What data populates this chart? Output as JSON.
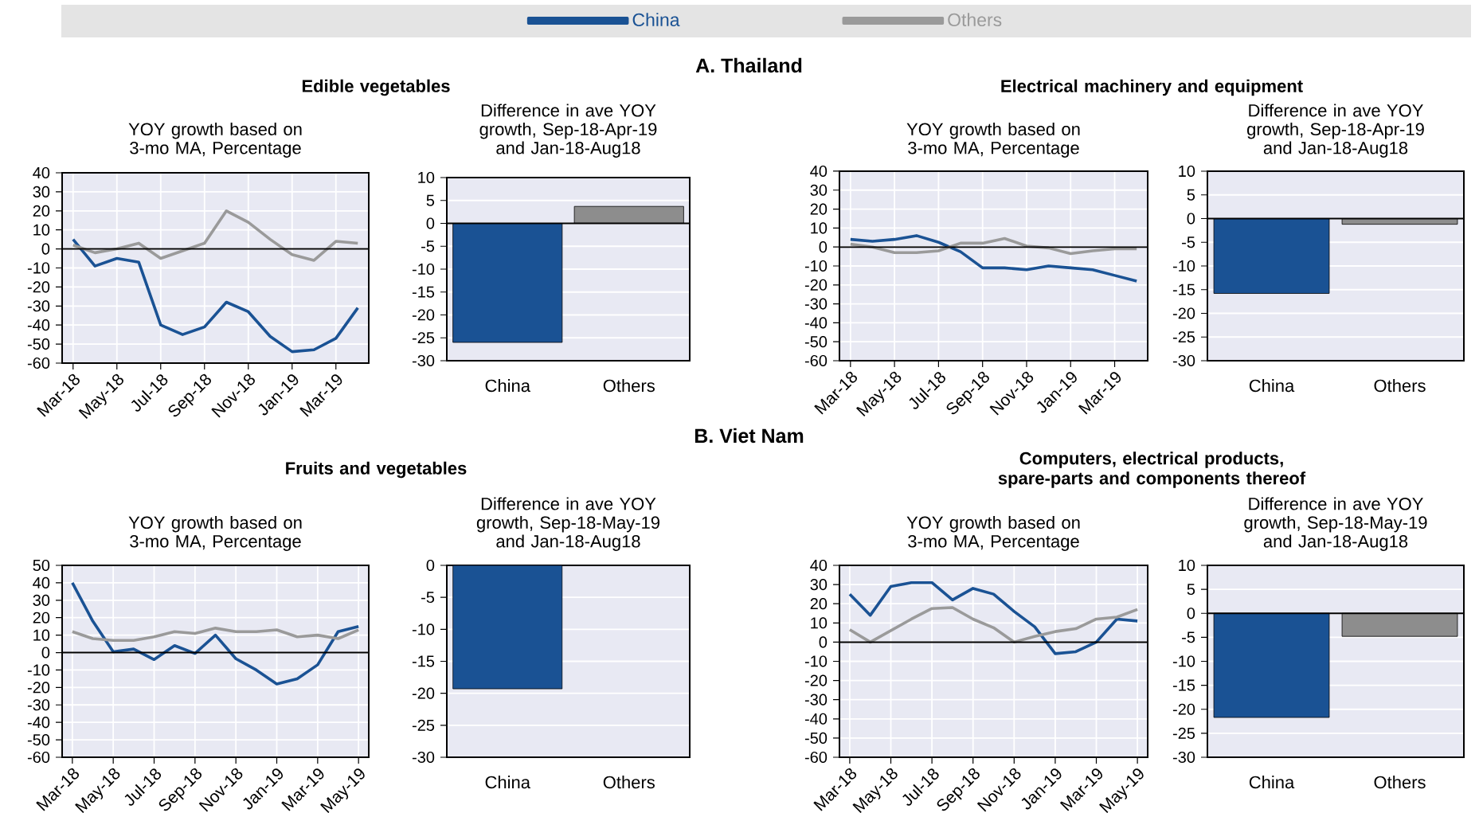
{
  "chart_data": [
    {
      "type": "line",
      "title": "Edible vegetables",
      "subtitle": "YOY growth based on 3-mo MA, Percentage",
      "annotations": [
        "A. Thailand"
      ],
      "legend": "top",
      "grid": true,
      "categories": [
        "Mar-18",
        null,
        "May-18",
        null,
        "Jul-18",
        null,
        "Sep-18",
        null,
        "Nov-18",
        null,
        "Jan-19",
        null,
        "Mar-19",
        null
      ],
      "ylim": [
        -60,
        40
      ],
      "yticks": [
        -60,
        -50,
        -40,
        -30,
        -20,
        -10,
        0,
        10,
        20,
        30,
        40
      ],
      "ref_lines": [
        {
          "axis": "y",
          "value": 0,
          "color": "#000000"
        }
      ],
      "series": [
        {
          "name": "China",
          "color": "#1a5294",
          "values": [
            5,
            -9,
            -5,
            -7,
            -40,
            -45,
            -41,
            -28,
            -33,
            -46,
            -54,
            -53,
            -47,
            -31
          ]
        },
        {
          "name": "Others",
          "color": "#9a9a9a",
          "values": [
            2,
            -2,
            0,
            3,
            -5,
            -1,
            3,
            20,
            14,
            5,
            -3,
            -6,
            4,
            3
          ]
        }
      ]
    },
    {
      "type": "bar",
      "title": "Difference in ave YOY growth, Sep-18-Apr-19 and Jan-18-Aug18",
      "grid": "y",
      "categories": [
        "China",
        "Others"
      ],
      "values": [
        -26,
        3.7
      ],
      "colors": [
        "#1a5294",
        "#8d8d8d"
      ],
      "ylim": [
        -30,
        10
      ],
      "yticks": [
        -30,
        -25,
        -20,
        -15,
        -10,
        -5,
        0,
        5,
        10
      ],
      "ref_lines": [
        {
          "axis": "y",
          "value": 0,
          "color": "#000000"
        }
      ]
    },
    {
      "type": "line",
      "title": "Electrical machinery and equipment",
      "subtitle": "YOY growth based on 3-mo MA, Percentage",
      "grid": true,
      "categories": [
        "Mar-18",
        null,
        "May-18",
        null,
        "Jul-18",
        null,
        "Sep-18",
        null,
        "Nov-18",
        null,
        "Jan-19",
        null,
        "Mar-19",
        null
      ],
      "ylim": [
        -60,
        40
      ],
      "yticks": [
        -60,
        -50,
        -40,
        -30,
        -20,
        -10,
        0,
        10,
        20,
        30,
        40
      ],
      "ref_lines": [
        {
          "axis": "y",
          "value": 0,
          "color": "#000000"
        }
      ],
      "series": [
        {
          "color": "#1a5294",
          "values": [
            4,
            3,
            4,
            6,
            2.5,
            -2.5,
            -11,
            -11,
            -12,
            -10,
            -11,
            -12,
            -15,
            -18
          ]
        },
        {
          "color": "#9a9a9a",
          "values": [
            1.5,
            0,
            -3,
            -3,
            -2,
            2,
            2,
            4.5,
            0.5,
            -0.5,
            -3.5,
            -2,
            -1,
            -1
          ]
        }
      ]
    },
    {
      "type": "bar",
      "title": "Difference in ave YOY growth, Sep-18-Apr-19 and Jan-18-Aug18",
      "grid": "y",
      "categories": [
        "China",
        "Others"
      ],
      "values": [
        -15.8,
        -1.2
      ],
      "colors": [
        "#1a5294",
        "#8d8d8d"
      ],
      "ylim": [
        -30,
        10
      ],
      "yticks": [
        -30,
        -25,
        -20,
        -15,
        -10,
        -5,
        0,
        5,
        10
      ],
      "ref_lines": [
        {
          "axis": "y",
          "value": 0,
          "color": "#000000"
        }
      ]
    },
    {
      "type": "line",
      "title": "Fruits and vegetables",
      "subtitle": "YOY growth based on 3-mo MA, Percentage",
      "annotations": [
        "B. Viet Nam"
      ],
      "grid": true,
      "categories": [
        "Mar-18",
        null,
        "May-18",
        null,
        "Jul-18",
        null,
        "Sep-18",
        null,
        "Nov-18",
        null,
        "Jan-19",
        null,
        "Mar-19",
        null,
        "May-19"
      ],
      "ylim": [
        -60,
        50
      ],
      "yticks": [
        -60,
        -50,
        -40,
        -30,
        -20,
        -10,
        0,
        10,
        20,
        30,
        40,
        50
      ],
      "ref_lines": [
        {
          "axis": "y",
          "value": 0,
          "color": "#000000"
        }
      ],
      "series": [
        {
          "color": "#1a5294",
          "values": [
            40,
            18,
            0.5,
            2,
            -4,
            4,
            -0.5,
            10,
            -3.5,
            -10,
            -18,
            -15,
            -7,
            12,
            15
          ]
        },
        {
          "color": "#9a9a9a",
          "values": [
            12,
            8,
            7,
            7,
            9,
            12,
            11,
            14,
            12,
            12,
            13,
            9,
            10,
            8,
            13
          ]
        }
      ]
    },
    {
      "type": "bar",
      "title": "Difference in ave YOY growth, Sep-18-May-19 and Jan-18-Aug18",
      "grid": "y",
      "categories": [
        "China",
        "Others"
      ],
      "values": [
        -19.3,
        null
      ],
      "colors": [
        "#1a5294",
        "#8d8d8d"
      ],
      "ylim": [
        -30,
        0
      ],
      "yticks": [
        -30,
        -25,
        -20,
        -15,
        -10,
        -5,
        0
      ]
    },
    {
      "type": "line",
      "title": "Computers, electrical products, spare-parts and components thereof",
      "subtitle": "YOY growth based on 3-mo MA, Percentage",
      "grid": true,
      "categories": [
        "Mar-18",
        null,
        "May-18",
        null,
        "Jul-18",
        null,
        "Sep-18",
        null,
        "Nov-18",
        null,
        "Jan-19",
        null,
        "Mar-19",
        null,
        "May-19"
      ],
      "ylim": [
        -60,
        40
      ],
      "yticks": [
        -60,
        -50,
        -40,
        -30,
        -20,
        -10,
        0,
        10,
        20,
        30,
        40
      ],
      "ref_lines": [
        {
          "axis": "y",
          "value": 0,
          "color": "#000000"
        }
      ],
      "series": [
        {
          "color": "#1a5294",
          "values": [
            25,
            14,
            29,
            31,
            31,
            22,
            28,
            25,
            16,
            8,
            -6,
            -5,
            0,
            12,
            11
          ]
        },
        {
          "color": "#9a9a9a",
          "values": [
            6.5,
            0,
            6,
            12,
            17.5,
            18,
            12,
            7.5,
            0,
            3,
            5.5,
            7,
            12,
            13,
            17
          ]
        }
      ]
    },
    {
      "type": "bar",
      "title": "Difference in ave YOY growth, Sep-18-May-19 and Jan-18-Aug18",
      "grid": "y",
      "categories": [
        "China",
        "Others"
      ],
      "values": [
        -21.7,
        -4.8
      ],
      "colors": [
        "#1a5294",
        "#8d8d8d"
      ],
      "ylim": [
        -30,
        10
      ],
      "yticks": [
        -30,
        -25,
        -20,
        -15,
        -10,
        -5,
        0,
        5,
        10
      ],
      "ref_lines": [
        {
          "axis": "y",
          "value": 0,
          "color": "#000000"
        }
      ]
    }
  ]
}
